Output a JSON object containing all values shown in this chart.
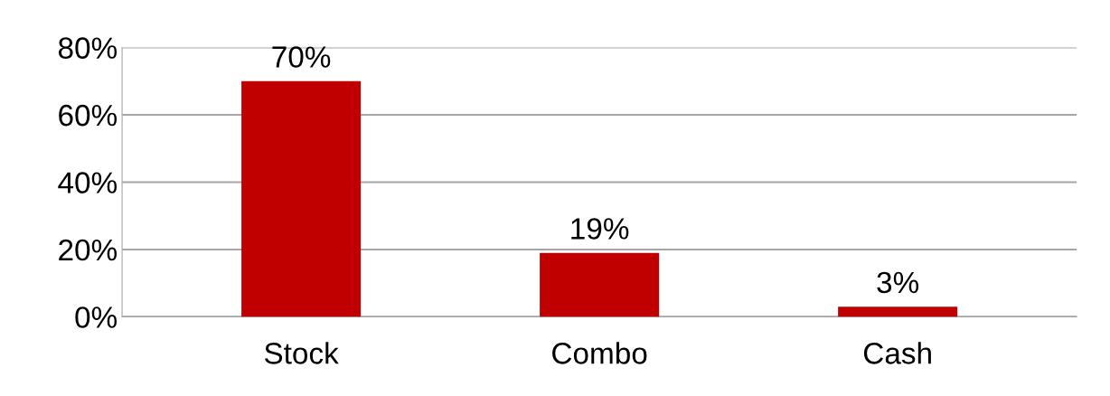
{
  "chart_data": {
    "type": "bar",
    "categories": [
      "Stock",
      "Combo",
      "Cash"
    ],
    "values": [
      70,
      19,
      3
    ],
    "color": "#c00000",
    "value_labels": [
      "70%",
      "19%",
      "3%"
    ],
    "ylim": [
      0,
      80
    ],
    "yticks": [
      {
        "value": 0,
        "label": "0%"
      },
      {
        "value": 20,
        "label": "20%"
      },
      {
        "value": 40,
        "label": "40%"
      },
      {
        "value": 60,
        "label": "60%"
      },
      {
        "value": 80,
        "label": "80%"
      }
    ],
    "grid": "y"
  }
}
